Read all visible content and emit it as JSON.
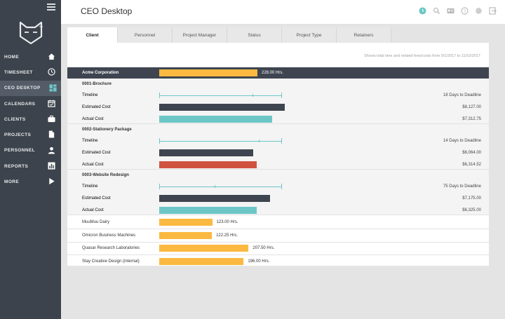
{
  "sidebar": {
    "items": [
      {
        "label": "HOME",
        "icon": "home-icon"
      },
      {
        "label": "TIMESHEET",
        "icon": "clock-icon"
      },
      {
        "label": "CEO DESKTOP",
        "icon": "dashboard-icon",
        "active": true
      },
      {
        "label": "CALENDARS",
        "icon": "calendar-icon"
      },
      {
        "label": "CLIENTS",
        "icon": "briefcase-icon"
      },
      {
        "label": "PROJECTS",
        "icon": "document-icon"
      },
      {
        "label": "PERSONNEL",
        "icon": "person-icon"
      },
      {
        "label": "REPORTS",
        "icon": "bar-chart-icon"
      },
      {
        "label": "MORE",
        "icon": "play-icon"
      }
    ]
  },
  "header": {
    "title": "CEO Desktop",
    "icons": [
      "timer-icon",
      "search-icon",
      "id-card-icon",
      "help-icon",
      "gear-icon",
      "logout-icon"
    ]
  },
  "tabs": [
    {
      "label": "Client",
      "active": true
    },
    {
      "label": "Personnel"
    },
    {
      "label": "Project Manager"
    },
    {
      "label": "Status"
    },
    {
      "label": "Project Type"
    },
    {
      "label": "Retainers"
    }
  ],
  "caption": "Shows total time and related fees/costs from  9/1/2017 to 11/10/2017",
  "colors": {
    "sidebar": "#3d434c",
    "accent_teal": "#6cc6c6",
    "hours_bar": "#fbb941",
    "estimated_bar": "#3e4550",
    "over_budget_bar": "#d0533f"
  },
  "client": {
    "name": "Acme Corporation",
    "hours": 228.0,
    "hours_label": "228.00 Hrs."
  },
  "projects": [
    {
      "title": "0001-Brochure",
      "timeline_label": "Timeline",
      "timeline_progress": 0.76,
      "deadline": "18 Days to Deadline",
      "estimated_label": "Estimated Cost",
      "estimated_value": "$8,127.00",
      "estimated": 8127,
      "actual_label": "Actual Cost",
      "actual_value": "$7,312.75",
      "actual": 7312.75,
      "over_budget": false
    },
    {
      "title": "0002-Stationery Package",
      "timeline_label": "Timeline",
      "timeline_progress": 0.81,
      "deadline": "14 Days to Deadline",
      "estimated_label": "Estimated Cost",
      "estimated_value": "$6,064.00",
      "estimated": 6064,
      "actual_label": "Actual Cost",
      "actual_value": "$6,314.52",
      "actual": 6314.52,
      "over_budget": true
    },
    {
      "title": "0003-Website Redesign",
      "timeline_label": "Timeline",
      "timeline_progress": 0.45,
      "deadline": "75 Days to Deadline",
      "estimated_label": "Estimated Cost",
      "estimated_value": "$7,175.00",
      "estimated": 7175,
      "actual_label": "Actual Cost",
      "actual_value": "$6,325.00",
      "actual": 6325,
      "over_budget": false
    }
  ],
  "other_clients": [
    {
      "name": "MuuMuu Dairy",
      "hours": 123.0,
      "hours_label": "123.00 Hrs."
    },
    {
      "name": "Omicron Business Machines",
      "hours": 122.25,
      "hours_label": "122.25 Hrs."
    },
    {
      "name": "Quasar Research Laboratories",
      "hours": 207.5,
      "hours_label": "207.50 Hrs."
    },
    {
      "name": "Stay Creative Design (internal)",
      "hours": 196.0,
      "hours_label": "196.00 Hrs."
    }
  ]
}
